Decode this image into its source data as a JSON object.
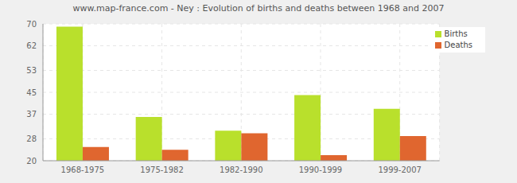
{
  "chart_data": {
    "type": "bar",
    "title": "www.map-france.com - Ney : Evolution of births and deaths between 1968 and 2007",
    "categories": [
      "1968-1975",
      "1975-1982",
      "1982-1990",
      "1990-1999",
      "1999-2007"
    ],
    "series": [
      {
        "name": "Births",
        "color": "#b9e02c",
        "values": [
          69,
          36,
          31,
          44,
          39
        ]
      },
      {
        "name": "Deaths",
        "color": "#e0662f",
        "values": [
          25,
          24,
          30,
          22,
          29
        ]
      }
    ],
    "ylim": [
      20,
      70
    ],
    "yticks": [
      20,
      28,
      37,
      45,
      53,
      62,
      70
    ],
    "grid": true,
    "legend": "top-right"
  }
}
